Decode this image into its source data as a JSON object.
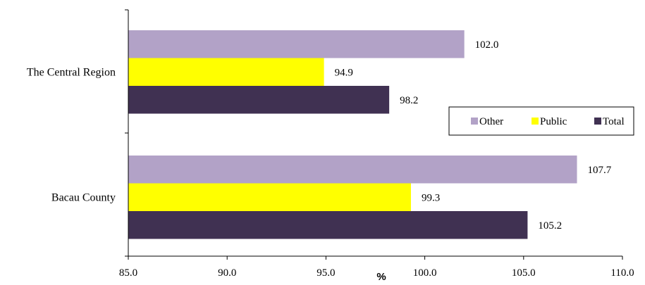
{
  "chart_data": {
    "type": "bar",
    "orientation": "horizontal",
    "categories": [
      "The Central Region",
      "Bacau County"
    ],
    "series": [
      {
        "name": "Other",
        "color": "#b2a2c7",
        "values": [
          102.0,
          107.7
        ]
      },
      {
        "name": "Public",
        "color": "#ffff00",
        "values": [
          94.9,
          99.3
        ]
      },
      {
        "name": "Total",
        "color": "#403152",
        "values": [
          98.2,
          105.2
        ]
      }
    ],
    "data_labels": [
      [
        "102.0",
        "94.9",
        "98.2"
      ],
      [
        "107.7",
        "99.3",
        "105.2"
      ]
    ],
    "xlabel": "%",
    "xlim": [
      85.0,
      110.0
    ],
    "xticks": [
      "85.0",
      "90.0",
      "95.0",
      "100.0",
      "105.0",
      "110.0"
    ],
    "grid": false,
    "legend_position": "right",
    "legend_order": [
      "Other",
      "Public",
      "Total"
    ]
  }
}
